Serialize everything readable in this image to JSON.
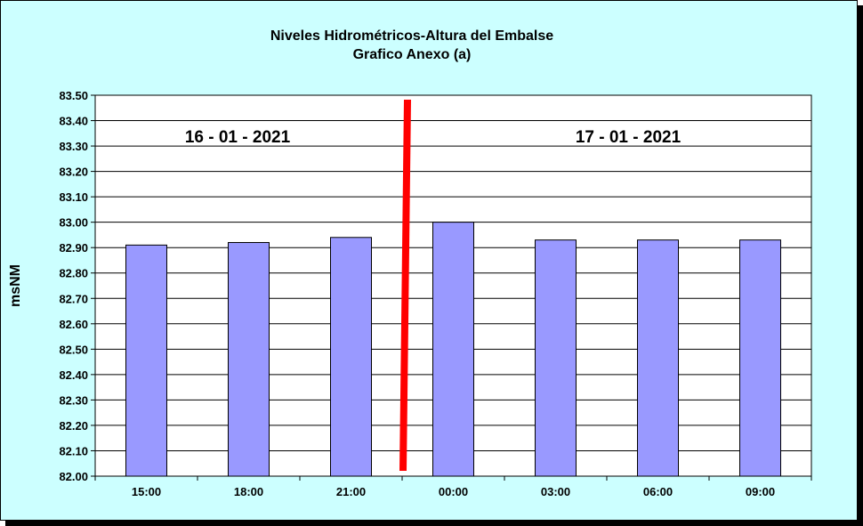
{
  "chart_data": {
    "type": "bar",
    "title": "Niveles Hidrométricos-Altura del Embalse",
    "subtitle": "Grafico Anexo (a)",
    "ylabel": "msNM",
    "xlabel": "",
    "ylim": [
      82.0,
      83.5
    ],
    "y_ticks": [
      "82.00",
      "82.10",
      "82.20",
      "82.30",
      "82.40",
      "82.50",
      "82.60",
      "82.70",
      "82.80",
      "82.90",
      "83.00",
      "83.10",
      "83.20",
      "83.30",
      "83.40",
      "83.50"
    ],
    "categories": [
      "15:00",
      "18:00",
      "21:00",
      "00:00",
      "03:00",
      "06:00",
      "09:00"
    ],
    "values": [
      82.91,
      82.92,
      82.94,
      83.0,
      82.93,
      82.93,
      82.93
    ],
    "grid": true,
    "annotations": [
      {
        "text": "16 - 01 - 2021"
      },
      {
        "text": "17 - 01 - 2021"
      }
    ],
    "bar_color": "#9999ff",
    "separator_color": "#ff0000",
    "background_color": "#ccffff",
    "plot_background_color": "#ffffff"
  }
}
